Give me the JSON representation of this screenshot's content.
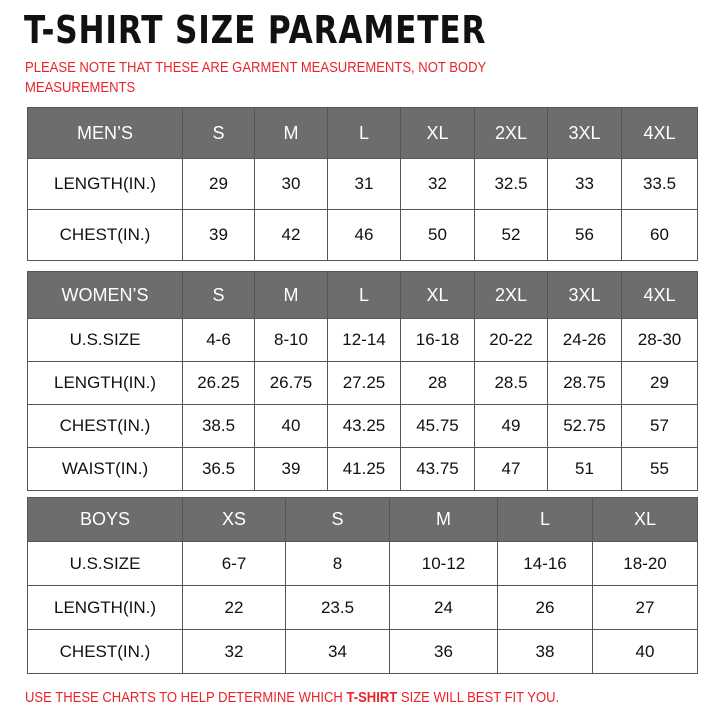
{
  "title": "T-SHIRT  SIZE  PARAMETER",
  "note": "PLEASE NOTE THAT THESE ARE GARMENT MEASUREMENTS, NOT BODY MEASUREMENTS",
  "footer": {
    "before": "USE THESE CHARTS TO HELP DETERMINE WHICH ",
    "bold": "T-SHIRT",
    "after": " SIZE WILL BEST FIT YOU."
  },
  "colors": {
    "header_bg": "#6d6d6d",
    "note_red": "#e8242b",
    "border": "#555555"
  },
  "men": {
    "header": [
      "MEN’S",
      "S",
      "M",
      "L",
      "XL",
      "2XL",
      "3XL",
      "4XL"
    ],
    "rows": [
      [
        "LENGTH(IN.)",
        "29",
        "30",
        "31",
        "32",
        "32.5",
        "33",
        "33.5"
      ],
      [
        "CHEST(IN.)",
        "39",
        "42",
        "46",
        "50",
        "52",
        "56",
        "60"
      ]
    ]
  },
  "women": {
    "header": [
      "WOMEN’S",
      "S",
      "M",
      "L",
      "XL",
      "2XL",
      "3XL",
      "4XL"
    ],
    "rows": [
      [
        "U.S.SIZE",
        "4-6",
        "8-10",
        "12-14",
        "16-18",
        "20-22",
        "24-26",
        "28-30"
      ],
      [
        "LENGTH(IN.)",
        "26.25",
        "26.75",
        "27.25",
        "28",
        "28.5",
        "28.75",
        "29"
      ],
      [
        "CHEST(IN.)",
        "38.5",
        "40",
        "43.25",
        "45.75",
        "49",
        "52.75",
        "57"
      ],
      [
        "WAIST(IN.)",
        "36.5",
        "39",
        "41.25",
        "43.75",
        "47",
        "51",
        "55"
      ]
    ]
  },
  "boys": {
    "header": [
      "BOYS",
      "XS",
      "S",
      "M",
      "L",
      "XL"
    ],
    "rows": [
      [
        "U.S.SIZE",
        "6-7",
        "8",
        "10-12",
        "14-16",
        "18-20"
      ],
      [
        "LENGTH(IN.)",
        "22",
        "23.5",
        "24",
        "26",
        "27"
      ],
      [
        "CHEST(IN.)",
        "32",
        "34",
        "36",
        "38",
        "40"
      ]
    ]
  }
}
